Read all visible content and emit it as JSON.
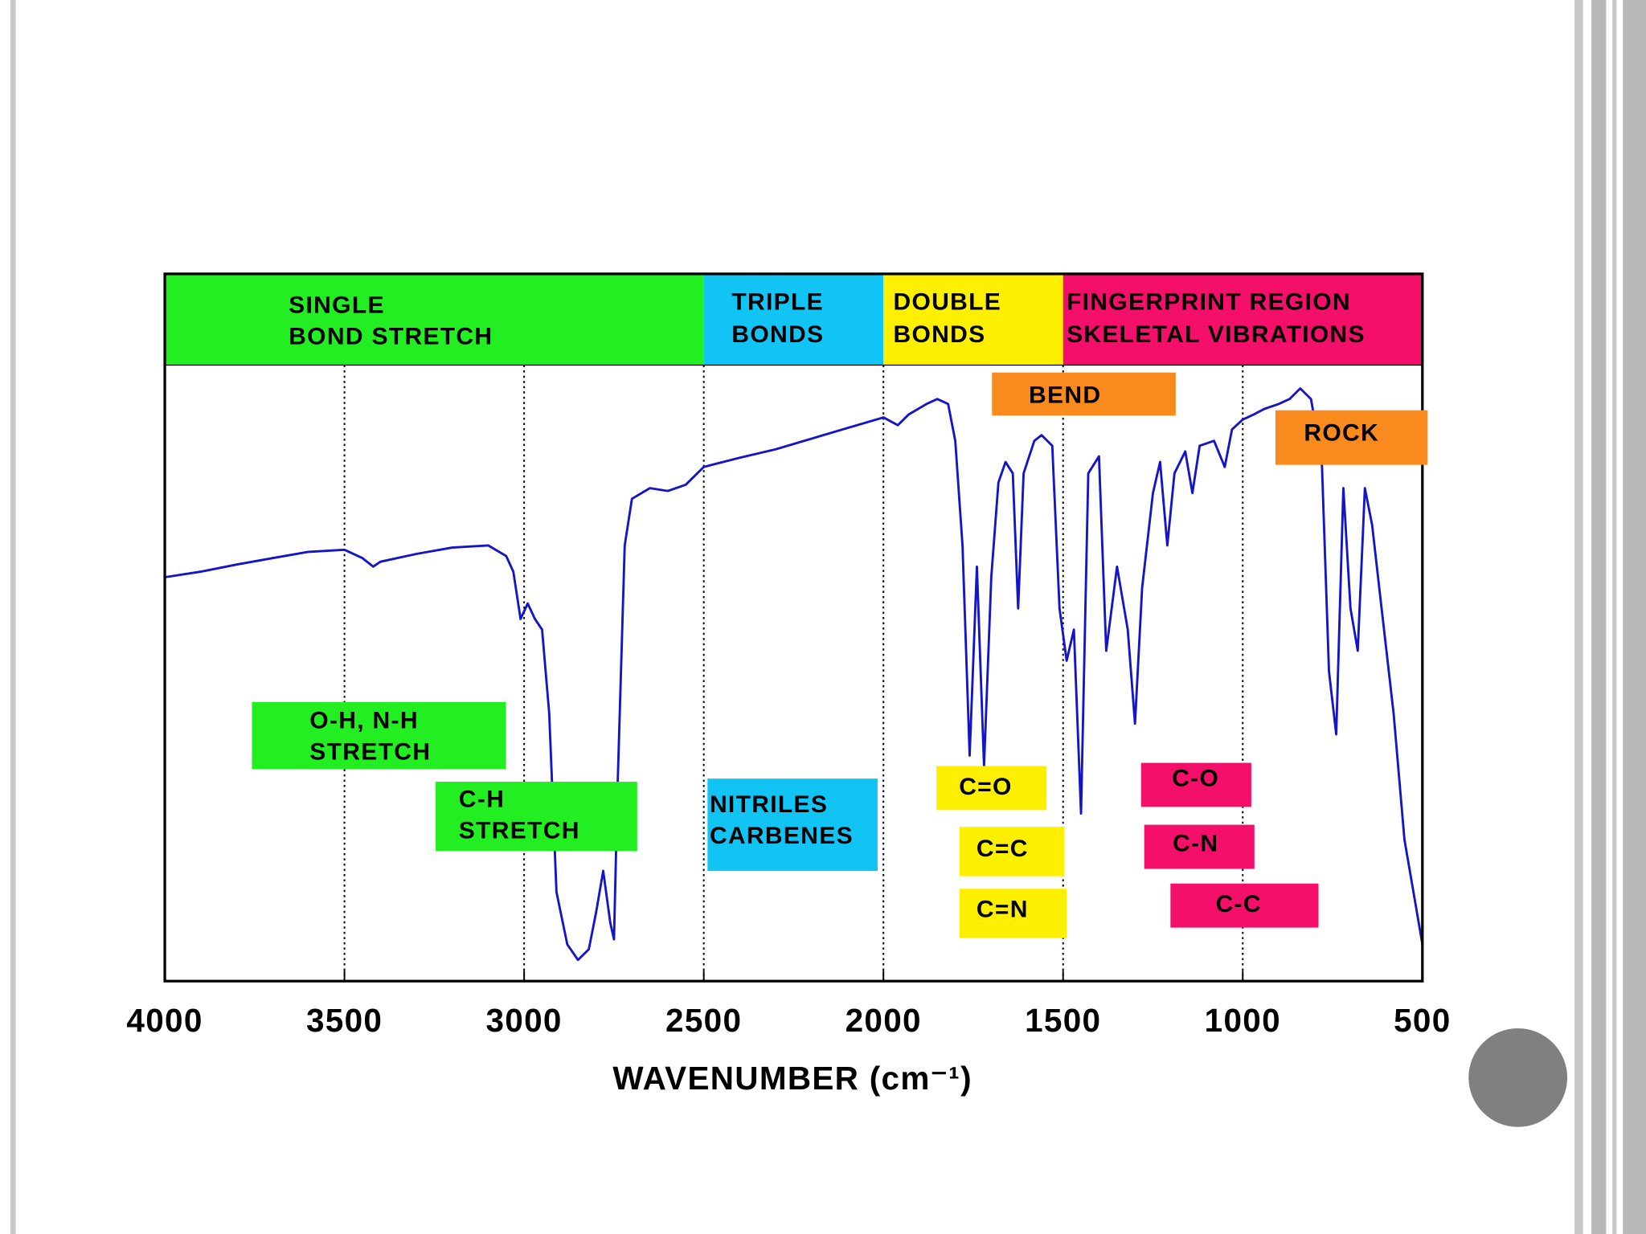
{
  "chart_data": {
    "type": "line",
    "x_label": "WAVENUMBER (cm⁻¹)",
    "xlim": [
      4000,
      500
    ],
    "xticks": [
      4000,
      3500,
      3000,
      2500,
      2000,
      1500,
      1000,
      500
    ],
    "ylim": [
      0,
      100
    ],
    "grid": true,
    "x": [
      4000,
      3900,
      3800,
      3700,
      3600,
      3500,
      3450,
      3420,
      3400,
      3300,
      3200,
      3100,
      3050,
      3030,
      3010,
      2990,
      2970,
      2950,
      2930,
      2910,
      2880,
      2850,
      2820,
      2800,
      2780,
      2760,
      2750,
      2740,
      2720,
      2700,
      2650,
      2600,
      2550,
      2500,
      2400,
      2300,
      2200,
      2100,
      2000,
      1960,
      1930,
      1880,
      1850,
      1820,
      1800,
      1780,
      1760,
      1740,
      1720,
      1700,
      1680,
      1660,
      1640,
      1625,
      1610,
      1580,
      1560,
      1530,
      1510,
      1490,
      1470,
      1450,
      1430,
      1400,
      1380,
      1350,
      1320,
      1300,
      1280,
      1250,
      1230,
      1210,
      1190,
      1160,
      1140,
      1120,
      1080,
      1050,
      1030,
      1000,
      970,
      940,
      900,
      870,
      840,
      810,
      780,
      760,
      740,
      720,
      700,
      680,
      660,
      640,
      620,
      580,
      550,
      520,
      500
    ],
    "series": [
      {
        "color": "#1414c8",
        "values": [
          57.1,
          57.9,
          58.9,
          59.8,
          60.7,
          61.0,
          59.8,
          58.6,
          59.3,
          60.4,
          61.3,
          61.6,
          60.1,
          57.9,
          51.2,
          53.4,
          51.2,
          49.7,
          37.8,
          12.6,
          5.2,
          3.0,
          4.5,
          9.6,
          15.6,
          8.2,
          5.9,
          27.4,
          61.6,
          68.2,
          69.7,
          69.3,
          70.2,
          72.7,
          74.0,
          75.2,
          76.7,
          78.2,
          79.7,
          78.6,
          80.1,
          81.6,
          82.3,
          81.6,
          76.4,
          61.6,
          31.9,
          58.6,
          30.4,
          57.1,
          70.5,
          73.4,
          71.8,
          52.7,
          71.8,
          76.4,
          77.2,
          75.7,
          52.7,
          45.3,
          49.7,
          23.7,
          71.8,
          74.2,
          46.7,
          58.6,
          49.7,
          36.4,
          55.6,
          69.0,
          73.4,
          61.6,
          71.8,
          74.9,
          69.0,
          75.7,
          76.4,
          72.7,
          78.0,
          79.4,
          80.1,
          80.9,
          81.6,
          82.3,
          83.8,
          82.3,
          73.4,
          43.8,
          34.9,
          69.7,
          52.7,
          46.7,
          69.7,
          64.5,
          55.6,
          37.8,
          20.0,
          11.1,
          5.2
        ]
      }
    ],
    "regions": [
      {
        "lines": [
          "SINGLE",
          "BOND STRETCH"
        ],
        "from": 4000,
        "to": 2500,
        "color": "#22ee22"
      },
      {
        "lines": [
          "TRIPLE",
          "BONDS"
        ],
        "from": 2500,
        "to": 2000,
        "color": "#11c4f4"
      },
      {
        "lines": [
          "DOUBLE",
          "BONDS"
        ],
        "from": 2000,
        "to": 1500,
        "color": "#fcf000"
      },
      {
        "lines": [
          "FINGERPRINT REGION",
          "SKELETAL VIBRATIONS"
        ],
        "from": 1500,
        "to": 500,
        "color": "#f4106a"
      }
    ],
    "annotations": [
      {
        "lines": [
          "BEND"
        ],
        "color": "#f88a1e"
      },
      {
        "lines": [
          "ROCK"
        ],
        "color": "#f88a1e"
      },
      {
        "lines": [
          "O-H, N-H",
          "STRETCH"
        ],
        "color": "#22ee22"
      },
      {
        "lines": [
          "C-H",
          "STRETCH"
        ],
        "color": "#22ee22"
      },
      {
        "lines": [
          "NITRILES",
          "CARBENES"
        ],
        "color": "#11c4f4"
      },
      {
        "lines": [
          "C=O"
        ],
        "color": "#fcf000"
      },
      {
        "lines": [
          "C=C"
        ],
        "color": "#fcf000"
      },
      {
        "lines": [
          "C=N"
        ],
        "color": "#fcf000"
      },
      {
        "lines": [
          "C-O"
        ],
        "color": "#f4106a"
      },
      {
        "lines": [
          "C-N"
        ],
        "color": "#f4106a"
      },
      {
        "lines": [
          "C-C"
        ],
        "color": "#f4106a"
      }
    ]
  }
}
